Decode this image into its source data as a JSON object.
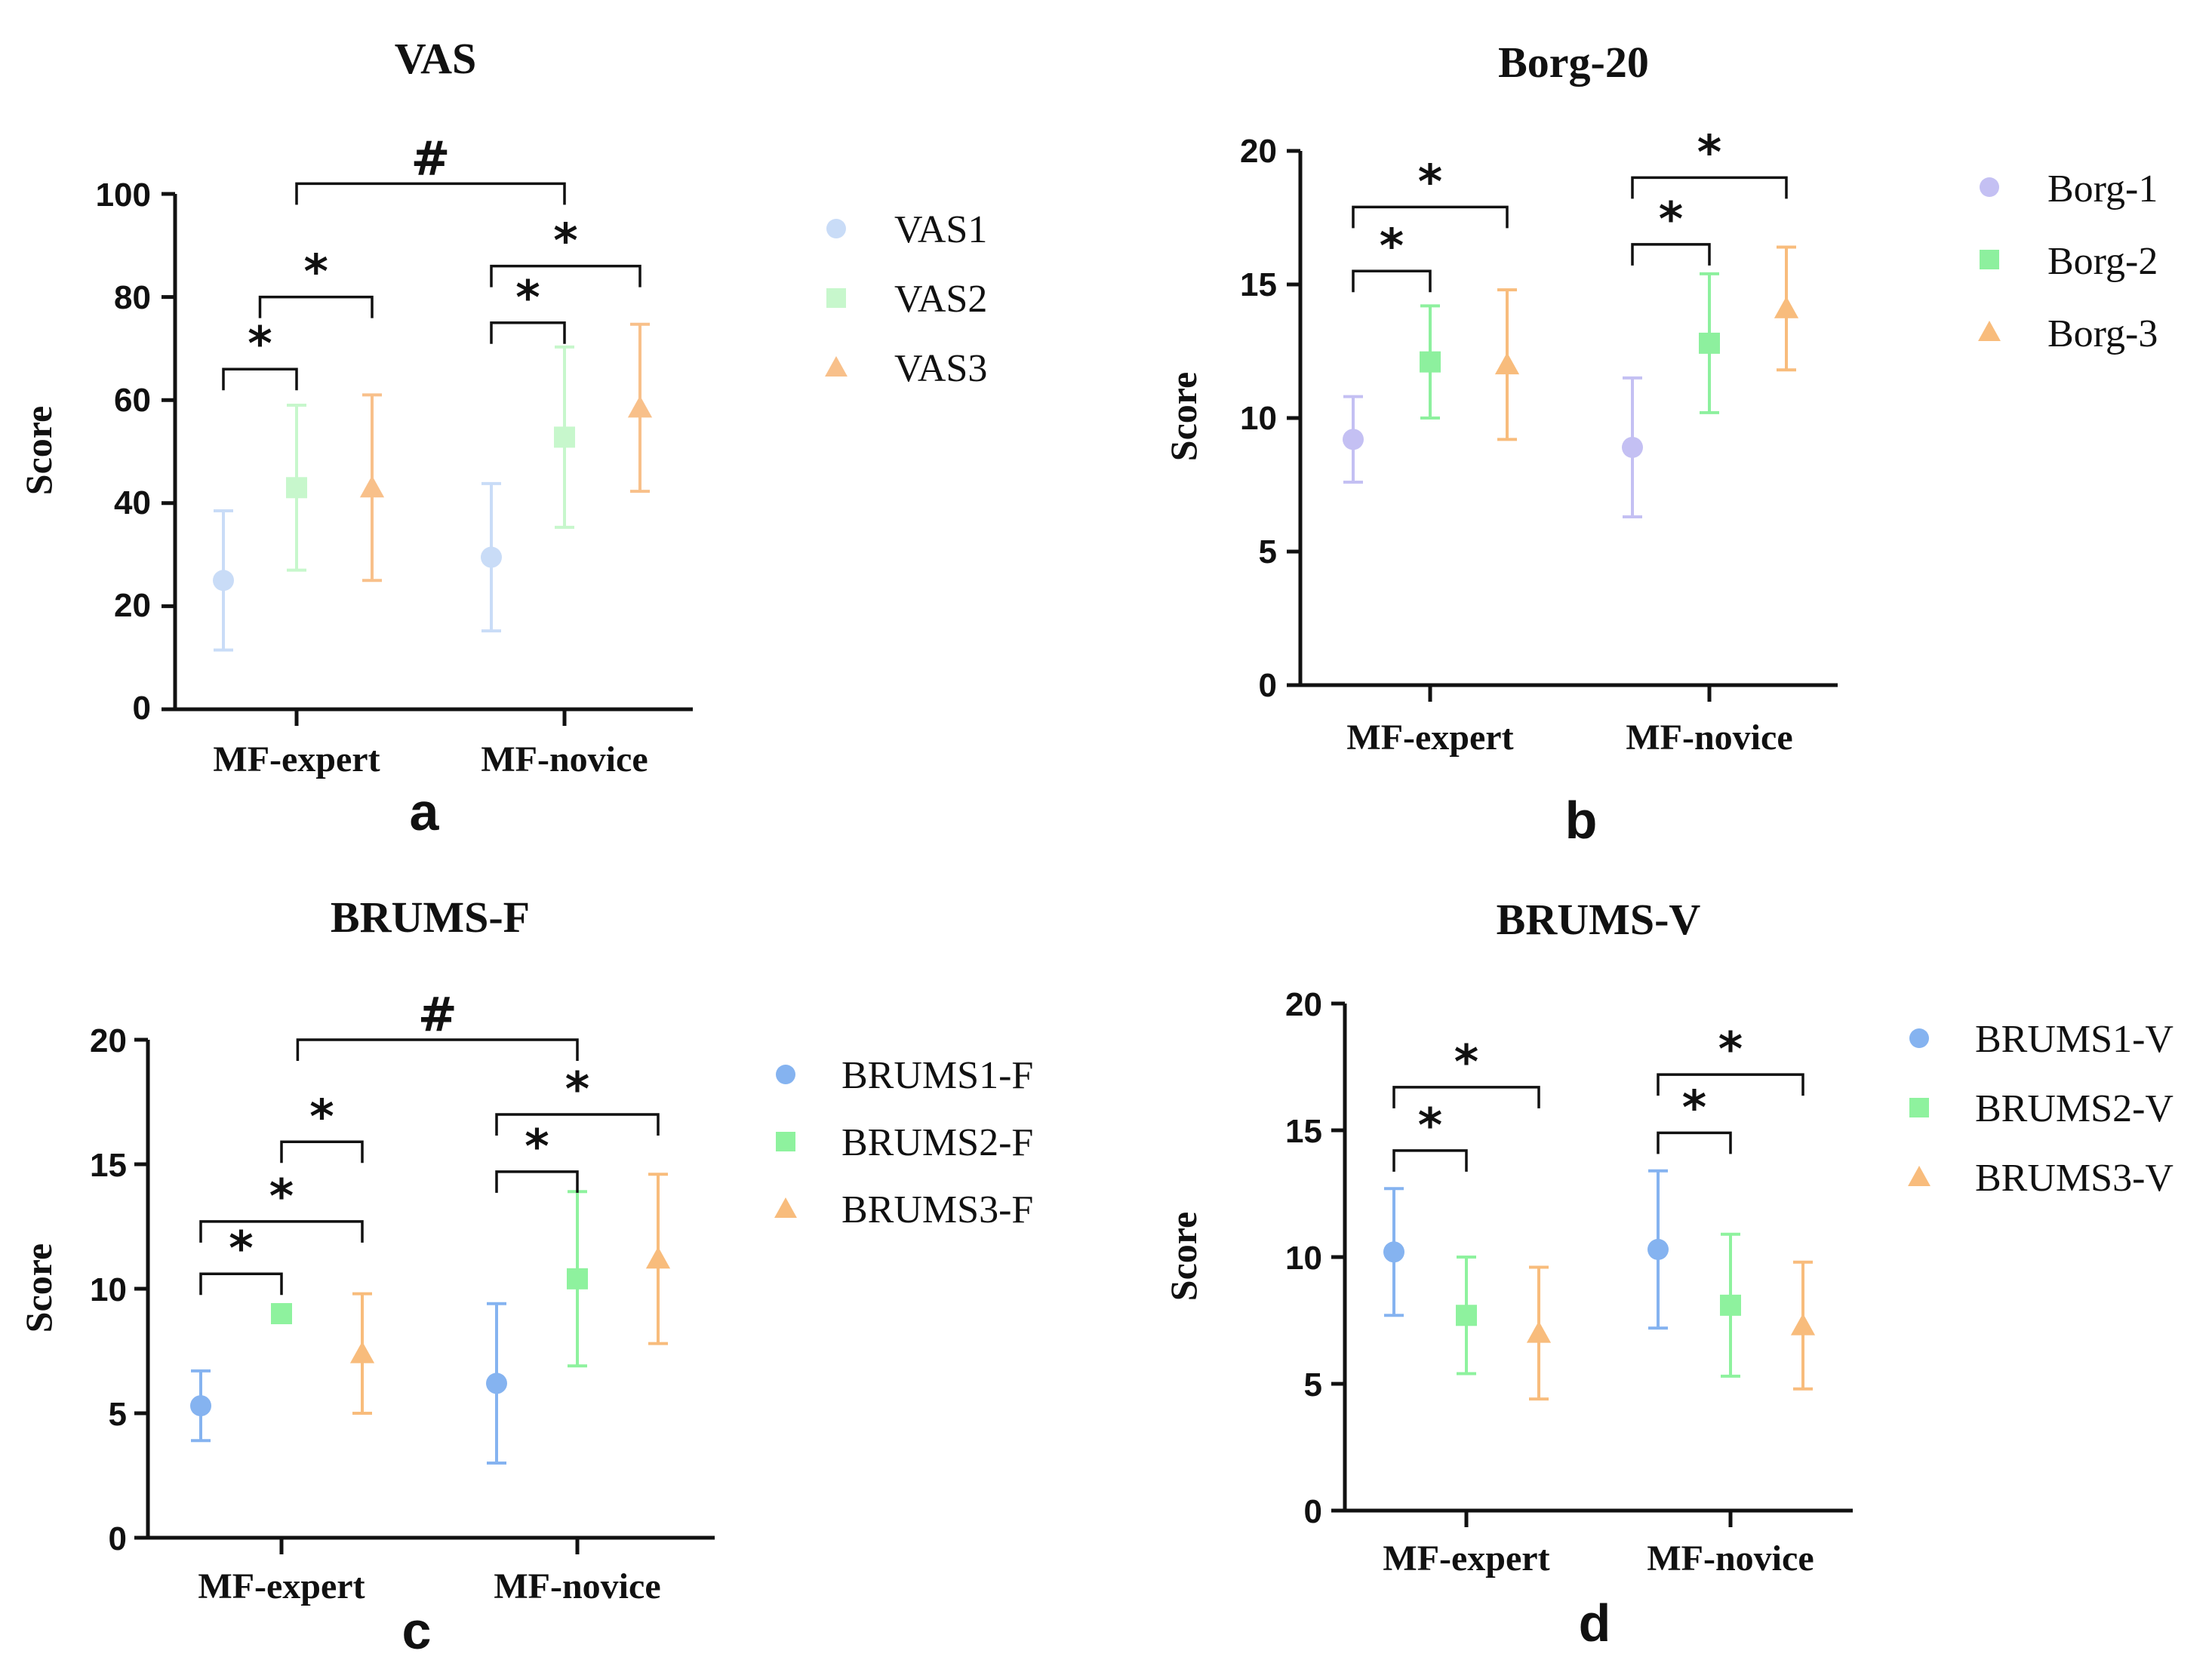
{
  "colors": {
    "VAS": [
      "#c9dcf7",
      "#c7f7cc",
      "#f8c08a"
    ],
    "Borg": [
      "#c4c0f3",
      "#8df09e",
      "#f8bc7c"
    ],
    "BRUMS": [
      "#85b3f0",
      "#8ef29e",
      "#f8bc7c"
    ]
  },
  "chart_data": [
    {
      "type": "scatter",
      "panel_label": "a",
      "title": "VAS",
      "ylabel": "Score",
      "ylim": [
        0,
        100
      ],
      "yticks": [
        "0",
        "20",
        "40",
        "60",
        "80",
        "100"
      ],
      "categories": [
        "MF-expert",
        "MF-novice"
      ],
      "series": [
        {
          "name": "VAS1",
          "marker": "circle",
          "values": [
            25,
            29.5
          ],
          "sd": [
            13.5,
            14.3
          ]
        },
        {
          "name": "VAS2",
          "marker": "square",
          "values": [
            43,
            52.8
          ],
          "sd": [
            16,
            17.5
          ]
        },
        {
          "name": "VAS3",
          "marker": "triangle",
          "values": [
            43,
            58.5
          ],
          "sd": [
            18,
            16.2
          ]
        }
      ],
      "annotations": [
        {
          "cat": 0,
          "from": 0,
          "to": 1,
          "level": 66,
          "label": "*"
        },
        {
          "cat": 0,
          "from": 0.5,
          "to": 2,
          "level": 80,
          "label": "*"
        },
        {
          "cat": 1,
          "from": 0,
          "to": 1,
          "level": 75,
          "label": "*"
        },
        {
          "cat": 1,
          "from": 0,
          "to": 2,
          "level": 86,
          "label": "*"
        },
        {
          "between": true,
          "from": 0,
          "to": 1,
          "level": 102,
          "label": "#"
        }
      ]
    },
    {
      "type": "scatter",
      "panel_label": "b",
      "title": "Borg-20",
      "ylabel": "Score",
      "ylim": [
        0,
        20
      ],
      "yticks": [
        "0",
        "5",
        "10",
        "15",
        "20"
      ],
      "categories": [
        "MF-expert",
        "MF-novice"
      ],
      "series": [
        {
          "name": "Borg-1",
          "marker": "circle",
          "values": [
            9.2,
            8.9
          ],
          "sd": [
            1.6,
            2.6
          ]
        },
        {
          "name": "Borg-2",
          "marker": "square",
          "values": [
            12.1,
            12.8
          ],
          "sd": [
            2.1,
            2.6
          ]
        },
        {
          "name": "Borg-3",
          "marker": "triangle",
          "values": [
            12.0,
            14.1
          ],
          "sd": [
            2.8,
            2.3
          ]
        }
      ],
      "annotations": [
        {
          "cat": 0,
          "from": 0,
          "to": 1,
          "level": 15.5,
          "label": "*"
        },
        {
          "cat": 0,
          "from": 0,
          "to": 2,
          "level": 17.9,
          "label": "*"
        },
        {
          "cat": 1,
          "from": 0,
          "to": 1,
          "level": 16.5,
          "label": "*"
        },
        {
          "cat": 1,
          "from": 0,
          "to": 2,
          "level": 19.0,
          "label": "*"
        }
      ]
    },
    {
      "type": "scatter",
      "panel_label": "c",
      "title": "BRUMS-F",
      "ylabel": "Score",
      "ylim": [
        0,
        20
      ],
      "yticks": [
        "0",
        "5",
        "10",
        "15",
        "20"
      ],
      "categories": [
        "MF-expert",
        "MF-novice"
      ],
      "series": [
        {
          "name": "BRUMS1-F",
          "marker": "circle",
          "values": [
            5.3,
            6.2
          ],
          "sd": [
            1.4,
            3.2
          ]
        },
        {
          "name": "BRUMS2-F",
          "marker": "square",
          "values": [
            9.0,
            10.4
          ],
          "sd": [
            0,
            3.5
          ]
        },
        {
          "name": "BRUMS3-F",
          "marker": "triangle",
          "values": [
            7.4,
            11.2
          ],
          "sd": [
            2.4,
            3.4
          ]
        }
      ],
      "annotations": [
        {
          "cat": 0,
          "from": 0,
          "to": 1,
          "level": 10.6,
          "label": "*"
        },
        {
          "cat": 0,
          "from": 0,
          "to": 2,
          "level": 12.7,
          "label": "*"
        },
        {
          "cat": 0,
          "from": 1,
          "to": 2,
          "level": 15.9,
          "label": "*"
        },
        {
          "cat": 1,
          "from": 0,
          "to": 1,
          "level": 14.7,
          "label": "*"
        },
        {
          "cat": 1,
          "from": 0,
          "to": 2,
          "level": 17.0,
          "label": "*"
        },
        {
          "between": true,
          "from": 0.3,
          "to": 1,
          "level": 20.0,
          "label": "#"
        }
      ]
    },
    {
      "type": "scatter",
      "panel_label": "d",
      "title": "BRUMS-V",
      "ylabel": "Score",
      "ylim": [
        0,
        20
      ],
      "yticks": [
        "0",
        "5",
        "10",
        "15",
        "20"
      ],
      "categories": [
        "MF-expert",
        "MF-novice"
      ],
      "series": [
        {
          "name": "BRUMS1-V",
          "marker": "circle",
          "values": [
            10.2,
            10.3
          ],
          "sd": [
            2.5,
            3.1
          ]
        },
        {
          "name": "BRUMS2-V",
          "marker": "square",
          "values": [
            7.7,
            8.1
          ],
          "sd": [
            2.3,
            2.8
          ]
        },
        {
          "name": "BRUMS3-V",
          "marker": "triangle",
          "values": [
            7.0,
            7.3
          ],
          "sd": [
            2.6,
            2.5
          ]
        }
      ],
      "annotations": [
        {
          "cat": 0,
          "from": 0,
          "to": 1,
          "level": 14.2,
          "label": "*"
        },
        {
          "cat": 0,
          "from": 0,
          "to": 2,
          "level": 16.7,
          "label": "*"
        },
        {
          "cat": 1,
          "from": 0,
          "to": 1,
          "level": 14.9,
          "label": "*"
        },
        {
          "cat": 1,
          "from": 0,
          "to": 2,
          "level": 17.2,
          "label": "*"
        }
      ]
    }
  ]
}
